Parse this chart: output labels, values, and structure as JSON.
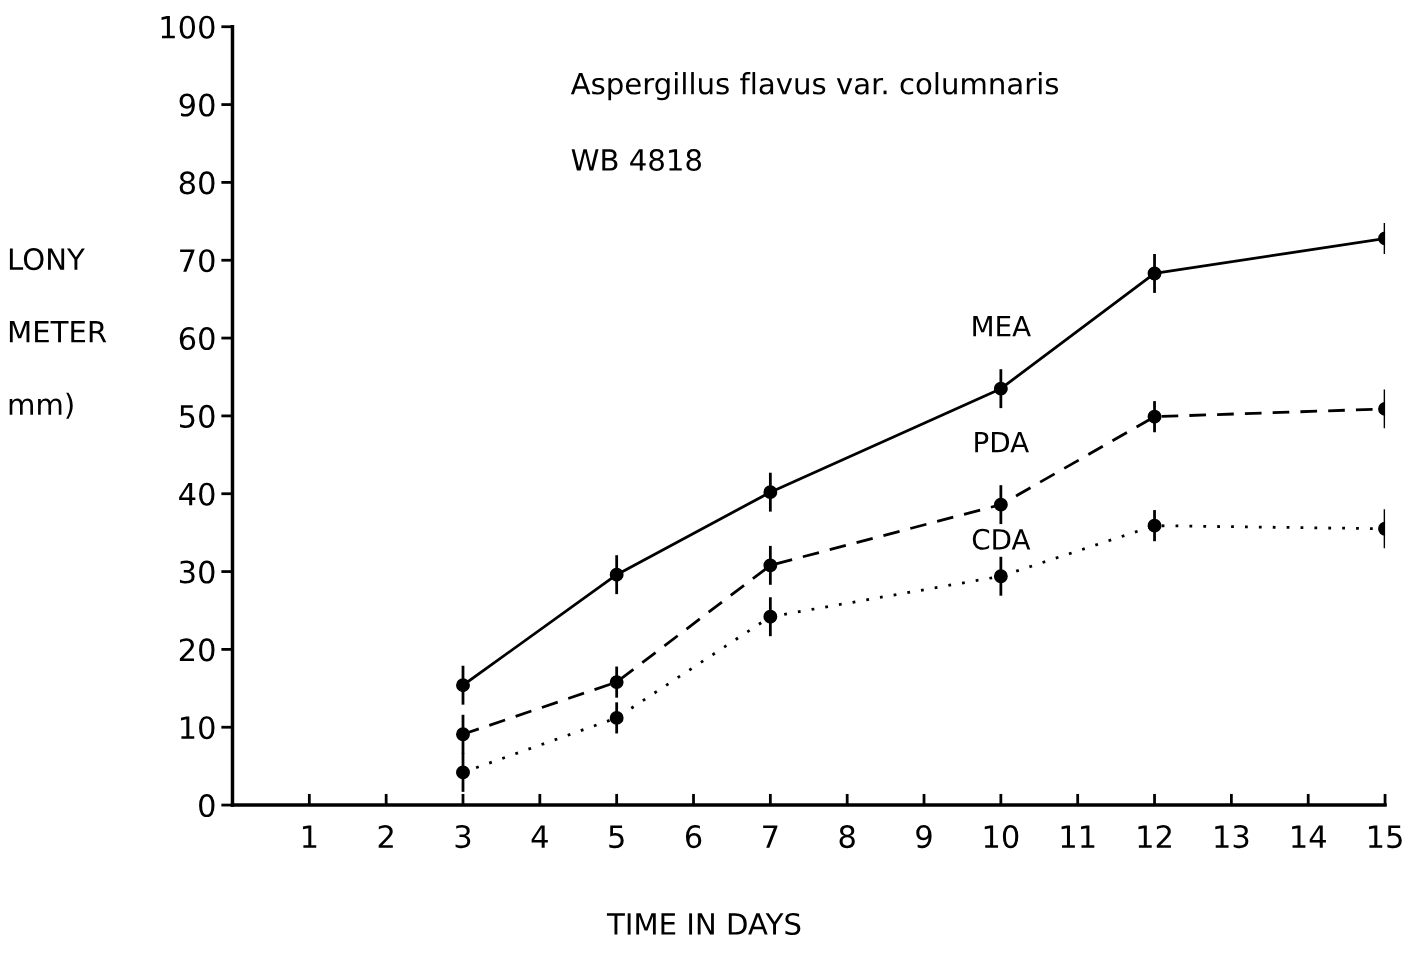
{
  "chart_data": {
    "type": "line",
    "title": "Aspergillus flavus var. columnaris",
    "subtitle": "WB 4818",
    "xlabel": "TIME IN DAYS",
    "ylabel": "LONY\nMETER\nmm)",
    "x": [
      3,
      5,
      7,
      10,
      12,
      15
    ],
    "series": [
      {
        "name": "MEA",
        "color": "#000000",
        "line_style": "solid",
        "values": [
          15.4,
          29.6,
          40.2,
          53.5,
          68.3,
          72.8
        ],
        "errors": [
          2.5,
          2.5,
          2.5,
          2.5,
          2.5,
          2
        ]
      },
      {
        "name": "PDA",
        "color": "#000000",
        "line_style": "dashed",
        "values": [
          9.1,
          15.8,
          30.8,
          38.6,
          49.9,
          50.9
        ],
        "errors": [
          2.5,
          2,
          2.5,
          2.5,
          2,
          2.5
        ]
      },
      {
        "name": "CDA",
        "color": "#000000",
        "line_style": "dotted",
        "values": [
          4.2,
          11.2,
          24.2,
          29.4,
          35.9,
          35.5
        ],
        "errors": [
          2.5,
          2,
          2.5,
          2.5,
          2,
          2.5
        ]
      }
    ],
    "xlim": [
      0,
      15
    ],
    "ylim": [
      0,
      100
    ],
    "xticks": [
      1,
      2,
      3,
      4,
      5,
      6,
      7,
      8,
      9,
      10,
      11,
      12,
      13,
      14,
      15
    ],
    "yticks": [
      0,
      10,
      20,
      30,
      40,
      50,
      60,
      70,
      80,
      90,
      100
    ],
    "marker": "circle",
    "grid": false,
    "legend": false
  }
}
